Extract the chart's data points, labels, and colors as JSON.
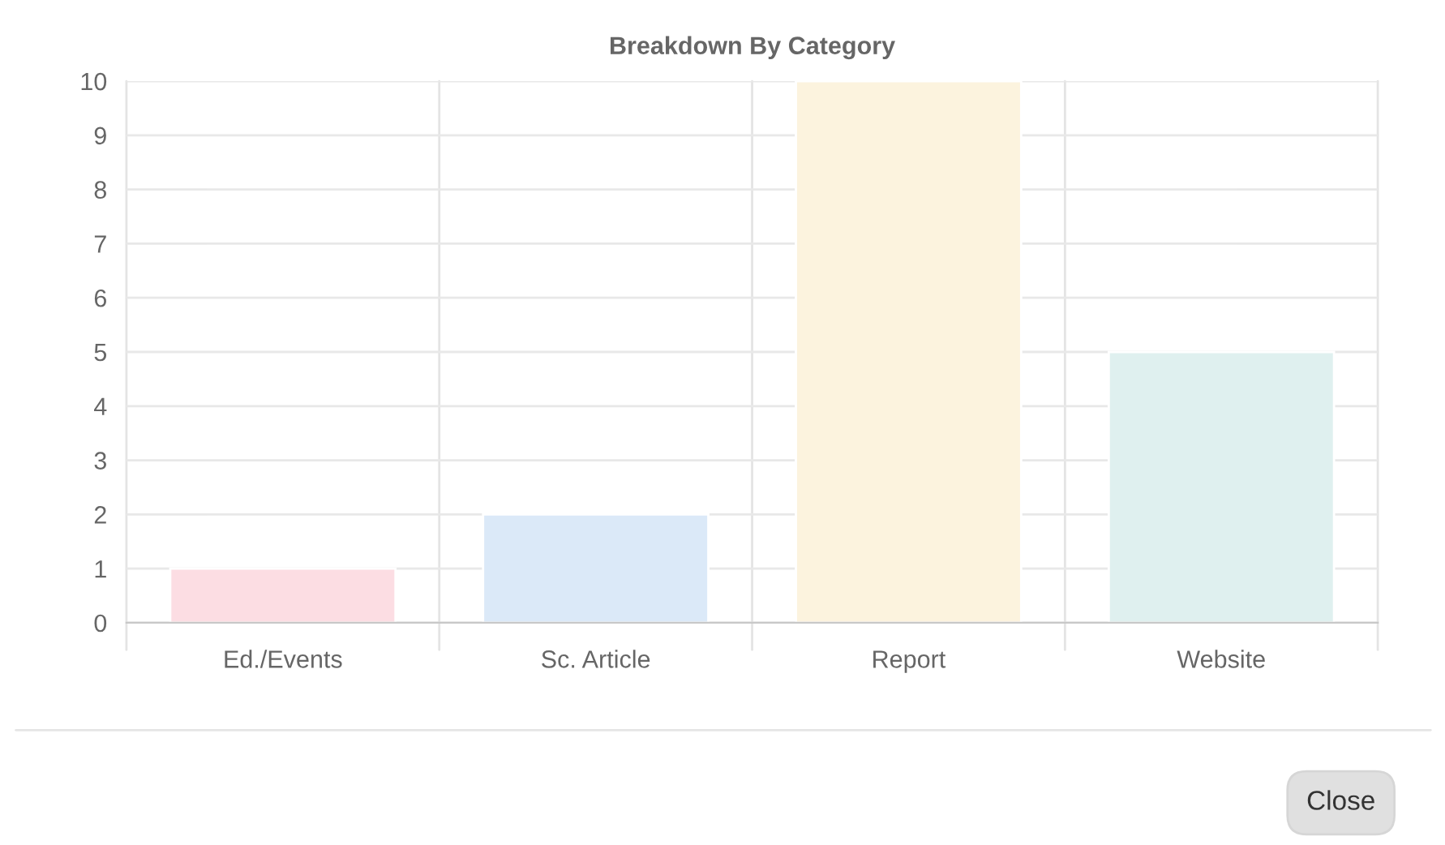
{
  "chart_data": {
    "type": "bar",
    "title": "Breakdown By Category",
    "categories": [
      "Ed./Events",
      "Sc. Article",
      "Report",
      "Website"
    ],
    "values": [
      1,
      2,
      10,
      5
    ],
    "colors": [
      "#fcdde3",
      "#dbe9f8",
      "#fcf3de",
      "#dff0ef"
    ],
    "ylim": [
      0,
      10
    ],
    "yticks": [
      0,
      1,
      2,
      3,
      4,
      5,
      6,
      7,
      8,
      9,
      10
    ],
    "grid": true,
    "annotations": [
      "Close"
    ]
  }
}
